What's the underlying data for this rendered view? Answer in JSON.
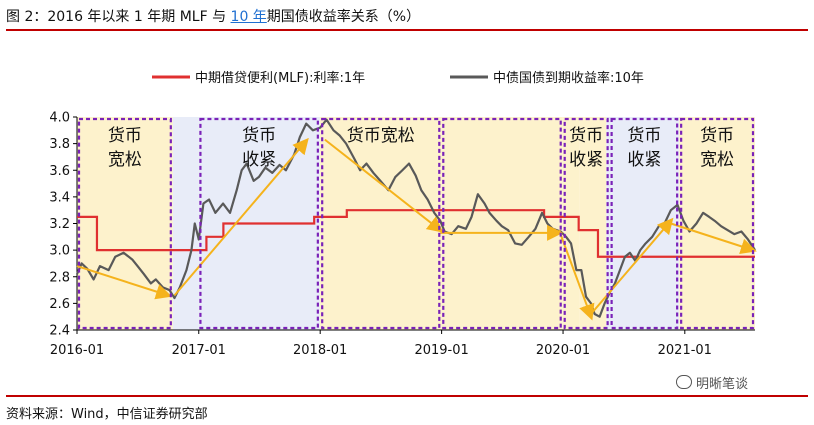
{
  "header": {
    "title_prefix": "图 2：2016 年以来 1 年期 MLF 与 ",
    "title_link": "10 年",
    "title_suffix": "期国债收益率关系（%）"
  },
  "footer": {
    "source": "资料来源：Wind，中信证券研究部",
    "watermark": "明晰笔谈"
  },
  "colors": {
    "mlf": "#e03030",
    "bond": "#595959",
    "ease_bg": "#fdf2cc",
    "tight_bg": "#e8ecf8",
    "box": "#7a22b8",
    "arrow": "#f5b31c",
    "accent": "#c00000"
  },
  "chart_data": {
    "type": "line",
    "xlim": [
      "2016-01-01",
      "2021-07-31"
    ],
    "ylim": [
      2.4,
      4.0
    ],
    "yticks": [
      "2.4",
      "2.6",
      "2.8",
      "3.0",
      "3.2",
      "3.4",
      "3.6",
      "3.8",
      "4.0"
    ],
    "xticks": [
      "2016-01",
      "2017-01",
      "2018-01",
      "2019-01",
      "2020-01",
      "2021-01"
    ],
    "series": [
      {
        "name": "中期借贷便利(MLF):利率:1年",
        "step": true,
        "points": [
          [
            "2016-01-01",
            3.25
          ],
          [
            "2016-03-01",
            3.0
          ],
          [
            "2017-01-24",
            3.1
          ],
          [
            "2017-03-16",
            3.2
          ],
          [
            "2017-12-14",
            3.25
          ],
          [
            "2018-03-22",
            3.3
          ],
          [
            "2019-11-05",
            3.25
          ],
          [
            "2020-02-17",
            3.15
          ],
          [
            "2020-04-15",
            2.95
          ],
          [
            "2021-07-31",
            2.95
          ]
        ]
      },
      {
        "name": "中债国债到期收益率:10年",
        "step": false,
        "points": [
          [
            "2016-01-01",
            2.82
          ],
          [
            "2016-01-15",
            2.9
          ],
          [
            "2016-02-01",
            2.86
          ],
          [
            "2016-02-20",
            2.78
          ],
          [
            "2016-03-10",
            2.88
          ],
          [
            "2016-04-05",
            2.85
          ],
          [
            "2016-04-25",
            2.95
          ],
          [
            "2016-05-20",
            2.98
          ],
          [
            "2016-06-15",
            2.93
          ],
          [
            "2016-07-01",
            2.88
          ],
          [
            "2016-07-20",
            2.82
          ],
          [
            "2016-08-10",
            2.75
          ],
          [
            "2016-08-25",
            2.78
          ],
          [
            "2016-09-15",
            2.72
          ],
          [
            "2016-10-05",
            2.7
          ],
          [
            "2016-10-20",
            2.64
          ],
          [
            "2016-11-05",
            2.72
          ],
          [
            "2016-11-25",
            2.85
          ],
          [
            "2016-12-10",
            3.0
          ],
          [
            "2016-12-20",
            3.2
          ],
          [
            "2017-01-01",
            3.08
          ],
          [
            "2017-01-15",
            3.35
          ],
          [
            "2017-02-01",
            3.38
          ],
          [
            "2017-02-20",
            3.28
          ],
          [
            "2017-03-15",
            3.35
          ],
          [
            "2017-04-05",
            3.28
          ],
          [
            "2017-04-25",
            3.45
          ],
          [
            "2017-05-10",
            3.6
          ],
          [
            "2017-05-25",
            3.65
          ],
          [
            "2017-06-15",
            3.52
          ],
          [
            "2017-07-01",
            3.55
          ],
          [
            "2017-07-20",
            3.62
          ],
          [
            "2017-08-10",
            3.58
          ],
          [
            "2017-09-01",
            3.64
          ],
          [
            "2017-09-20",
            3.6
          ],
          [
            "2017-10-15",
            3.72
          ],
          [
            "2017-11-01",
            3.85
          ],
          [
            "2017-11-20",
            3.95
          ],
          [
            "2017-12-10",
            3.9
          ],
          [
            "2018-01-01",
            3.92
          ],
          [
            "2018-01-20",
            3.98
          ],
          [
            "2018-02-10",
            3.9
          ],
          [
            "2018-03-01",
            3.86
          ],
          [
            "2018-03-20",
            3.8
          ],
          [
            "2018-04-15",
            3.68
          ],
          [
            "2018-05-01",
            3.6
          ],
          [
            "2018-05-20",
            3.65
          ],
          [
            "2018-06-10",
            3.58
          ],
          [
            "2018-07-01",
            3.52
          ],
          [
            "2018-07-25",
            3.45
          ],
          [
            "2018-08-15",
            3.55
          ],
          [
            "2018-09-05",
            3.6
          ],
          [
            "2018-09-25",
            3.65
          ],
          [
            "2018-10-15",
            3.56
          ],
          [
            "2018-11-01",
            3.45
          ],
          [
            "2018-11-20",
            3.38
          ],
          [
            "2018-12-10",
            3.28
          ],
          [
            "2018-12-28",
            3.22
          ],
          [
            "2019-01-10",
            3.14
          ],
          [
            "2019-01-31",
            3.12
          ],
          [
            "2019-02-20",
            3.18
          ],
          [
            "2019-03-15",
            3.16
          ],
          [
            "2019-04-01",
            3.25
          ],
          [
            "2019-04-20",
            3.42
          ],
          [
            "2019-05-10",
            3.35
          ],
          [
            "2019-05-25",
            3.28
          ],
          [
            "2019-06-15",
            3.22
          ],
          [
            "2019-07-01",
            3.18
          ],
          [
            "2019-07-20",
            3.15
          ],
          [
            "2019-08-10",
            3.05
          ],
          [
            "2019-08-30",
            3.04
          ],
          [
            "2019-09-20",
            3.1
          ],
          [
            "2019-10-10",
            3.16
          ],
          [
            "2019-10-30",
            3.28
          ],
          [
            "2019-11-15",
            3.2
          ],
          [
            "2019-12-01",
            3.16
          ],
          [
            "2019-12-25",
            3.14
          ],
          [
            "2020-01-10",
            3.1
          ],
          [
            "2020-01-25",
            3.05
          ],
          [
            "2020-02-10",
            2.85
          ],
          [
            "2020-02-25",
            2.85
          ],
          [
            "2020-03-10",
            2.65
          ],
          [
            "2020-03-25",
            2.6
          ],
          [
            "2020-04-05",
            2.52
          ],
          [
            "2020-04-20",
            2.5
          ],
          [
            "2020-05-05",
            2.6
          ],
          [
            "2020-05-20",
            2.68
          ],
          [
            "2020-06-05",
            2.75
          ],
          [
            "2020-06-20",
            2.85
          ],
          [
            "2020-07-05",
            2.95
          ],
          [
            "2020-07-20",
            2.98
          ],
          [
            "2020-08-05",
            2.92
          ],
          [
            "2020-08-20",
            3.0
          ],
          [
            "2020-09-05",
            3.05
          ],
          [
            "2020-09-25",
            3.1
          ],
          [
            "2020-10-15",
            3.18
          ],
          [
            "2020-11-01",
            3.2
          ],
          [
            "2020-11-20",
            3.3
          ],
          [
            "2020-12-10",
            3.34
          ],
          [
            "2020-12-28",
            3.22
          ],
          [
            "2021-01-15",
            3.14
          ],
          [
            "2021-02-05",
            3.2
          ],
          [
            "2021-02-25",
            3.28
          ],
          [
            "2021-03-15",
            3.25
          ],
          [
            "2021-04-01",
            3.22
          ],
          [
            "2021-04-20",
            3.18
          ],
          [
            "2021-05-10",
            3.15
          ],
          [
            "2021-05-30",
            3.12
          ],
          [
            "2021-06-20",
            3.14
          ],
          [
            "2021-07-10",
            3.08
          ],
          [
            "2021-07-31",
            3.0
          ]
        ]
      }
    ],
    "regions": [
      {
        "start": "2016-01-01",
        "end": "2016-10-15",
        "kind": "ease",
        "label1": "货币",
        "label2": "宽松",
        "boxed": true
      },
      {
        "start": "2016-10-15",
        "end": "2016-12-31",
        "kind": "tight",
        "label1": "",
        "label2": "",
        "boxed": false
      },
      {
        "start": "2016-12-31",
        "end": "2017-12-31",
        "kind": "tight",
        "label1": "货币",
        "label2": "收紧",
        "boxed": true
      },
      {
        "start": "2017-12-31",
        "end": "2018-12-31",
        "kind": "ease",
        "label1": "",
        "label2": "",
        "boxed": false
      },
      {
        "start": "2018-01-01",
        "end": "2018-12-31",
        "kind": "ease",
        "label1": "货币宽松",
        "label2": "",
        "boxed": true
      },
      {
        "start": "2018-12-31",
        "end": "2019-12-31",
        "kind": "ease",
        "label1": "",
        "label2": "",
        "boxed": true
      },
      {
        "start": "2019-12-31",
        "end": "2020-02-20",
        "kind": "ease",
        "label1": "",
        "label2": "",
        "boxed": false
      },
      {
        "start": "2020-02-20",
        "end": "2020-05-10",
        "kind": "ease",
        "label1": "",
        "label2": "",
        "boxed": false
      },
      {
        "start": "2020-05-10",
        "end": "2020-12-15",
        "kind": "tight",
        "label1": "",
        "label2": "",
        "boxed": false
      },
      {
        "start": "2019-12-31",
        "end": "2020-05-20",
        "kind": "none",
        "label1": "货币",
        "label2": "收紧",
        "boxed": true
      },
      {
        "start": "2020-05-20",
        "end": "2020-12-15",
        "kind": "none",
        "label1": "货币",
        "label2": "收紧",
        "boxed": true
      },
      {
        "start": "2020-12-15",
        "end": "2021-07-31",
        "kind": "ease",
        "label1": "货币",
        "label2": "宽松",
        "boxed": true
      }
    ],
    "arrows": [
      {
        "from": [
          "2016-01-01",
          2.88
        ],
        "to": [
          "2016-10-01",
          2.66
        ]
      },
      {
        "from": [
          "2016-10-20",
          2.66
        ],
        "to": [
          "2017-11-20",
          3.82
        ]
      },
      {
        "from": [
          "2018-01-15",
          3.83
        ],
        "to": [
          "2018-12-28",
          3.15
        ]
      },
      {
        "from": [
          "2018-12-28",
          3.13
        ],
        "to": [
          "2019-12-20",
          3.13
        ]
      },
      {
        "from": [
          "2019-12-20",
          3.15
        ],
        "to": [
          "2020-03-25",
          2.5
        ]
      },
      {
        "from": [
          "2020-03-25",
          2.52
        ],
        "to": [
          "2020-11-20",
          3.22
        ]
      },
      {
        "from": [
          "2020-11-20",
          3.2
        ],
        "to": [
          "2021-07-25",
          3.0
        ]
      }
    ],
    "legend_position": "top",
    "grid": false
  }
}
